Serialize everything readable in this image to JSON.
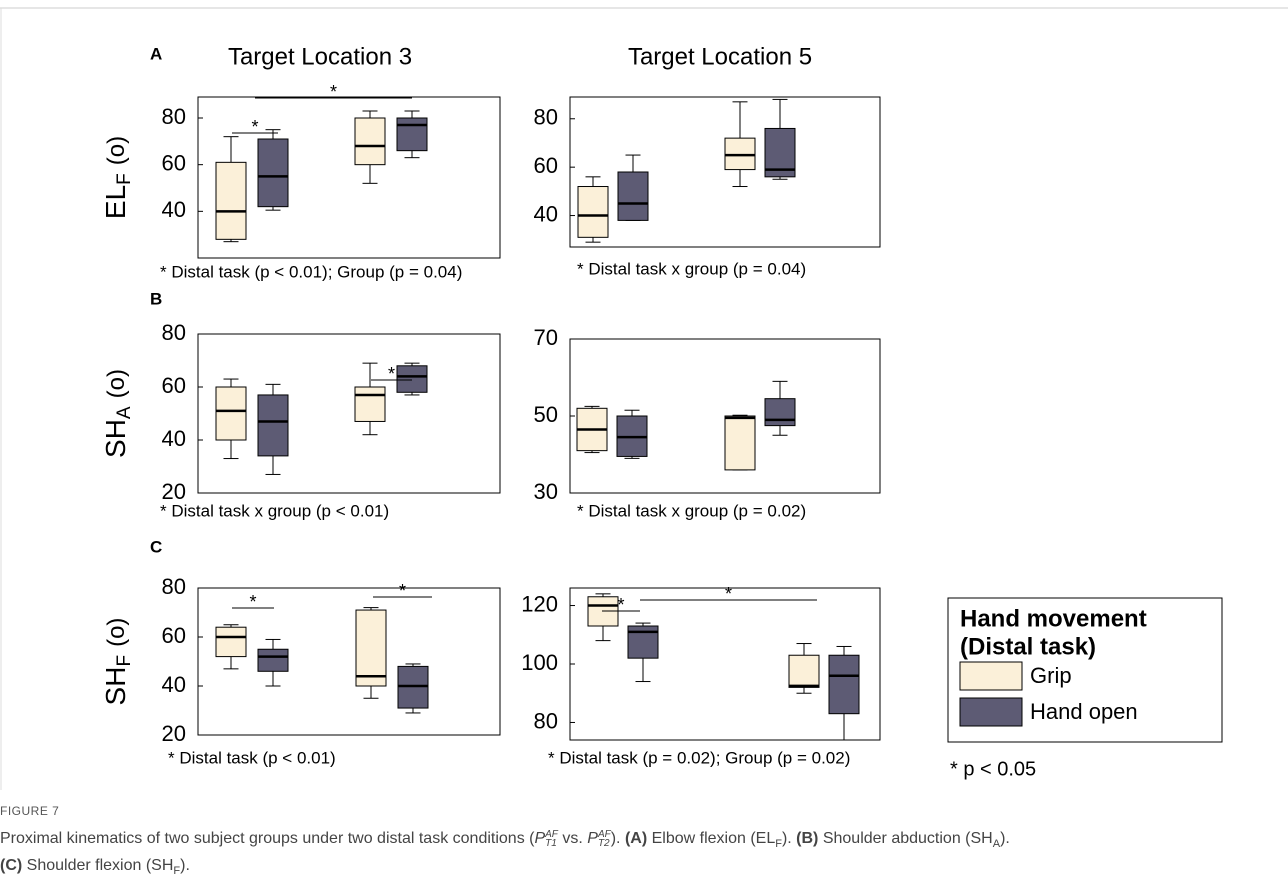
{
  "chart_data": [
    {
      "type": "box",
      "panel": "A",
      "title": "Target Location 3",
      "ylabel": {
        "base": "EL",
        "sub": "F",
        "unit": "(o)"
      },
      "categories": [
        null,
        null
      ],
      "ylim": [
        20,
        89
      ],
      "yticks": [
        40,
        60,
        80
      ],
      "series": [
        {
          "name": "Grip",
          "color": "#fbf0d9",
          "values": [
            {
              "min": 27,
              "q1": 28,
              "median": 40,
              "q3": 61,
              "max": 72
            },
            {
              "min": 52,
              "q1": 60,
              "median": 68,
              "q3": 80,
              "max": 83
            }
          ]
        },
        {
          "name": "Hand open",
          "color": "#5d5b74",
          "values": [
            {
              "min": 40.5,
              "q1": 42,
              "median": 55,
              "q3": 71,
              "max": 75
            },
            {
              "min": 63,
              "q1": 66,
              "median": 77,
              "q3": 80,
              "max": 83
            }
          ]
        }
      ],
      "annotations": [
        "*",
        "*"
      ],
      "note": "* Distal task (p < 0.01); Group (p = 0.04)"
    },
    {
      "type": "box",
      "title": "Target Location 5",
      "categories": [
        null,
        null
      ],
      "ylim": [
        27,
        89
      ],
      "yticks": [
        40,
        60,
        80
      ],
      "series": [
        {
          "name": "Grip",
          "color": "#fbf0d9",
          "values": [
            {
              "min": 29,
              "q1": 31,
              "median": 40,
              "q3": 52,
              "max": 56
            },
            {
              "min": 52,
              "q1": 59,
              "median": 65,
              "q3": 72,
              "max": 87
            }
          ]
        },
        {
          "name": "Hand open",
          "color": "#5d5b74",
          "values": [
            {
              "min": 38,
              "q1": 38,
              "median": 45,
              "q3": 58,
              "max": 65
            },
            {
              "min": 55,
              "q1": 56,
              "median": 59,
              "q3": 76,
              "max": 88
            }
          ]
        }
      ],
      "annotations": [],
      "note": "* Distal task x group (p = 0.04)"
    },
    {
      "type": "box",
      "panel": "B",
      "ylabel": {
        "base": "SH",
        "sub": "A",
        "unit": "(o)"
      },
      "categories": [
        null,
        null
      ],
      "ylim": [
        20,
        80
      ],
      "yticks": [
        20,
        40,
        60,
        80
      ],
      "series": [
        {
          "name": "Grip",
          "color": "#fbf0d9",
          "values": [
            {
              "min": 33,
              "q1": 40,
              "median": 51,
              "q3": 60,
              "max": 63
            },
            {
              "min": 42,
              "q1": 47,
              "median": 57,
              "q3": 60,
              "max": 69
            }
          ]
        },
        {
          "name": "Hand open",
          "color": "#5d5b74",
          "values": [
            {
              "min": 27,
              "q1": 34,
              "median": 47,
              "q3": 57,
              "max": 61
            },
            {
              "min": 57,
              "q1": 58,
              "median": 64,
              "q3": 68,
              "max": 69
            }
          ]
        }
      ],
      "annotations": [
        "*"
      ],
      "note": "* Distal task x group (p < 0.01)"
    },
    {
      "type": "box",
      "categories": [
        null,
        null
      ],
      "ylim": [
        30,
        70
      ],
      "yticks": [
        30,
        50,
        70
      ],
      "series": [
        {
          "name": "Grip",
          "color": "#fbf0d9",
          "values": [
            {
              "min": 40.5,
              "q1": 41,
              "median": 46.5,
              "q3": 52,
              "max": 52.5
            },
            {
              "min": 36,
              "q1": 36,
              "median": 49.5,
              "q3": 50,
              "max": 50.2
            }
          ]
        },
        {
          "name": "Hand open",
          "color": "#5d5b74",
          "values": [
            {
              "min": 39,
              "q1": 39.5,
              "median": 44.5,
              "q3": 50,
              "max": 51.5
            },
            {
              "min": 45,
              "q1": 47.5,
              "median": 49,
              "q3": 54.5,
              "max": 59
            }
          ]
        }
      ],
      "annotations": [],
      "note": "* Distal task x group (p = 0.02)"
    },
    {
      "type": "box",
      "panel": "C",
      "ylabel": {
        "base": "SH",
        "sub": "F",
        "unit": "(o)"
      },
      "categories": [
        null,
        null
      ],
      "ylim": [
        20,
        80
      ],
      "yticks": [
        20,
        40,
        60,
        80
      ],
      "series": [
        {
          "name": "Grip",
          "color": "#fbf0d9",
          "values": [
            {
              "min": 47,
              "q1": 52,
              "median": 60,
              "q3": 64,
              "max": 65
            },
            {
              "min": 35,
              "q1": 40,
              "median": 44,
              "q3": 71,
              "max": 72
            }
          ]
        },
        {
          "name": "Hand open",
          "color": "#5d5b74",
          "values": [
            {
              "min": 40,
              "q1": 46,
              "median": 52,
              "q3": 55,
              "max": 59
            },
            {
              "min": 29,
              "q1": 31,
              "median": 40,
              "q3": 48,
              "max": 49
            }
          ]
        }
      ],
      "annotations": [
        "*",
        "*"
      ],
      "note": "* Distal task (p < 0.01)"
    },
    {
      "type": "box",
      "categories": [
        null,
        null
      ],
      "ylim": [
        74,
        126
      ],
      "yticks": [
        80,
        100,
        120
      ],
      "series": [
        {
          "name": "Grip",
          "color": "#fbf0d9",
          "values": [
            {
              "min": 108,
              "q1": 113,
              "median": 120,
              "q3": 123,
              "max": 124
            },
            {
              "min": 90,
              "q1": 92,
              "median": 92.5,
              "q3": 103,
              "max": 107
            }
          ]
        },
        {
          "name": "Hand open",
          "color": "#5d5b74",
          "values": [
            {
              "min": 94,
              "q1": 102,
              "median": 111,
              "q3": 113,
              "max": 114
            },
            {
              "min": 74,
              "q1": 83,
              "median": 96,
              "q3": 103,
              "max": 106
            }
          ]
        }
      ],
      "annotations": [
        "*",
        "*"
      ],
      "note": "* Distal task (p = 0.02); Group (p = 0.02)"
    }
  ],
  "legend": {
    "title": [
      "Hand movement",
      "(Distal task)"
    ],
    "note": "*  p < 0.05"
  },
  "figure_label": "FIGURE 7",
  "caption": [
    "Proximal kinematics of two subject groups under two distal task conditions (",
    "P",
    "AF",
    "T1",
    " vs. ",
    "P",
    "AF",
    "T2",
    "). ",
    "(A)",
    " Elbow flexion (EL",
    "F",
    "). ",
    "(B)",
    " Shoulder abduction (SH",
    "A",
    "). ",
    "(C)",
    " Shoulder flexion (SH",
    "F",
    ")."
  ]
}
